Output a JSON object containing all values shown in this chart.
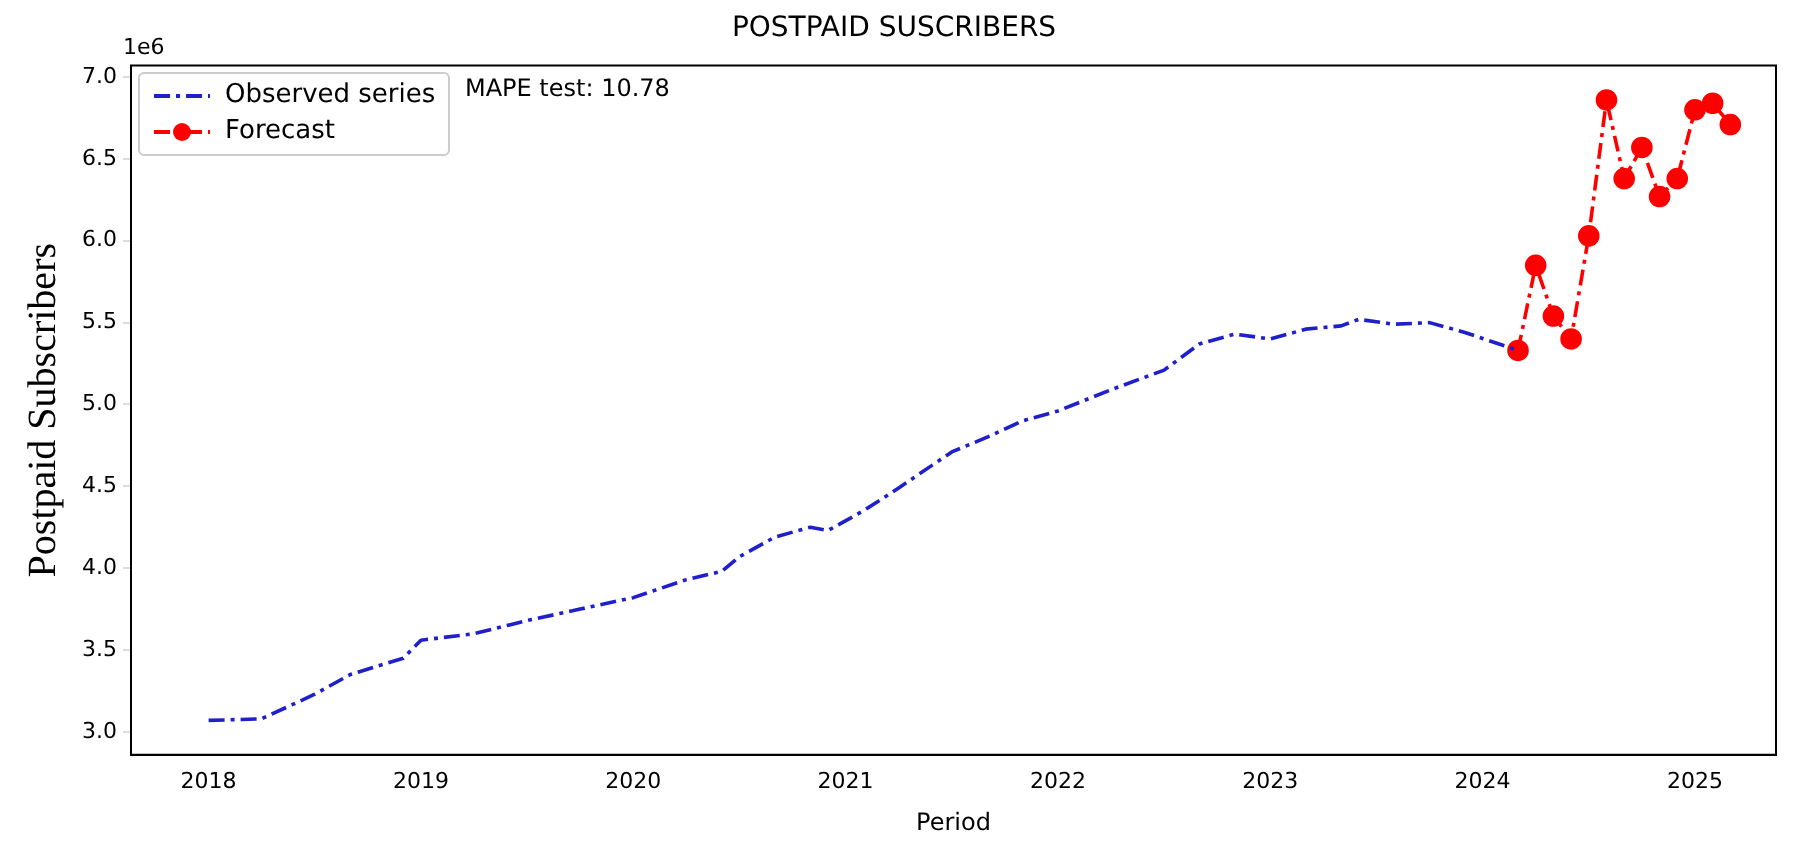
{
  "chart_data": {
    "type": "line",
    "title": "POSTPAID SUSCRIBERS",
    "xlabel": "Period",
    "ylabel": "Postpaid Subscribers",
    "annotations": [
      "1e6",
      "MAPE test: 10.78"
    ],
    "xlim": [
      "2017-08-20",
      "2025-05-19"
    ],
    "xticks": [
      {
        "value": "2018-01",
        "label": "2018"
      },
      {
        "value": "2019-01",
        "label": "2019"
      },
      {
        "value": "2020-01",
        "label": "2020"
      },
      {
        "value": "2021-01",
        "label": "2021"
      },
      {
        "value": "2022-01",
        "label": "2022"
      },
      {
        "value": "2023-01",
        "label": "2023"
      },
      {
        "value": "2024-01",
        "label": "2024"
      },
      {
        "value": "2025-01",
        "label": "2025"
      }
    ],
    "ylim": [
      2.86,
      7.07
    ],
    "yticks": [
      {
        "value": 3,
        "label": "3.0"
      },
      3.5,
      {
        "value": 4,
        "label": "4.0"
      },
      4.5,
      {
        "value": 5,
        "label": "5.0"
      },
      5.5,
      {
        "value": 6,
        "label": "6.0"
      },
      6.5,
      {
        "value": 7,
        "label": "7.0"
      }
    ],
    "grid": false,
    "legend": "top left",
    "line_style": "dashed",
    "series": [
      {
        "name": "Observed series",
        "color": "#1f1fcc",
        "marker": "none",
        "x": [
          "2018-01",
          "2018-04",
          "2018-07",
          "2018-09",
          "2018-12",
          "2019-01",
          "2019-04",
          "2019-07",
          "2019-10",
          "2020-01",
          "2020-04",
          "2020-06",
          "2020-07",
          "2020-09",
          "2020-11",
          "2020-12",
          "2021-02",
          "2021-04",
          "2021-07",
          "2021-09",
          "2021-11",
          "2022-01",
          "2022-04",
          "2022-07",
          "2022-09",
          "2022-11",
          "2023-01",
          "2023-03",
          "2023-05",
          "2023-06",
          "2023-08",
          "2023-10",
          "2023-12",
          "2024-03"
        ],
        "values": [
          3.07,
          3.08,
          3.23,
          3.35,
          3.45,
          3.56,
          3.6,
          3.68,
          3.75,
          3.82,
          3.93,
          3.98,
          4.07,
          4.19,
          4.25,
          4.23,
          4.35,
          4.49,
          4.71,
          4.8,
          4.9,
          4.96,
          5.09,
          5.21,
          5.37,
          5.43,
          5.4,
          5.46,
          5.48,
          5.52,
          5.49,
          5.5,
          5.44,
          5.33
        ]
      },
      {
        "name": "Forecast",
        "color": "#ff0000",
        "marker": "circle",
        "x": [
          "2024-03",
          "2024-04",
          "2024-05",
          "2024-06",
          "2024-07",
          "2024-08",
          "2024-09",
          "2024-10",
          "2024-11",
          "2024-12",
          "2025-01",
          "2025-02",
          "2025-03"
        ],
        "values": [
          5.33,
          5.85,
          5.54,
          5.4,
          6.03,
          6.86,
          6.38,
          6.57,
          6.27,
          6.38,
          6.8,
          6.84,
          6.71
        ]
      }
    ]
  }
}
